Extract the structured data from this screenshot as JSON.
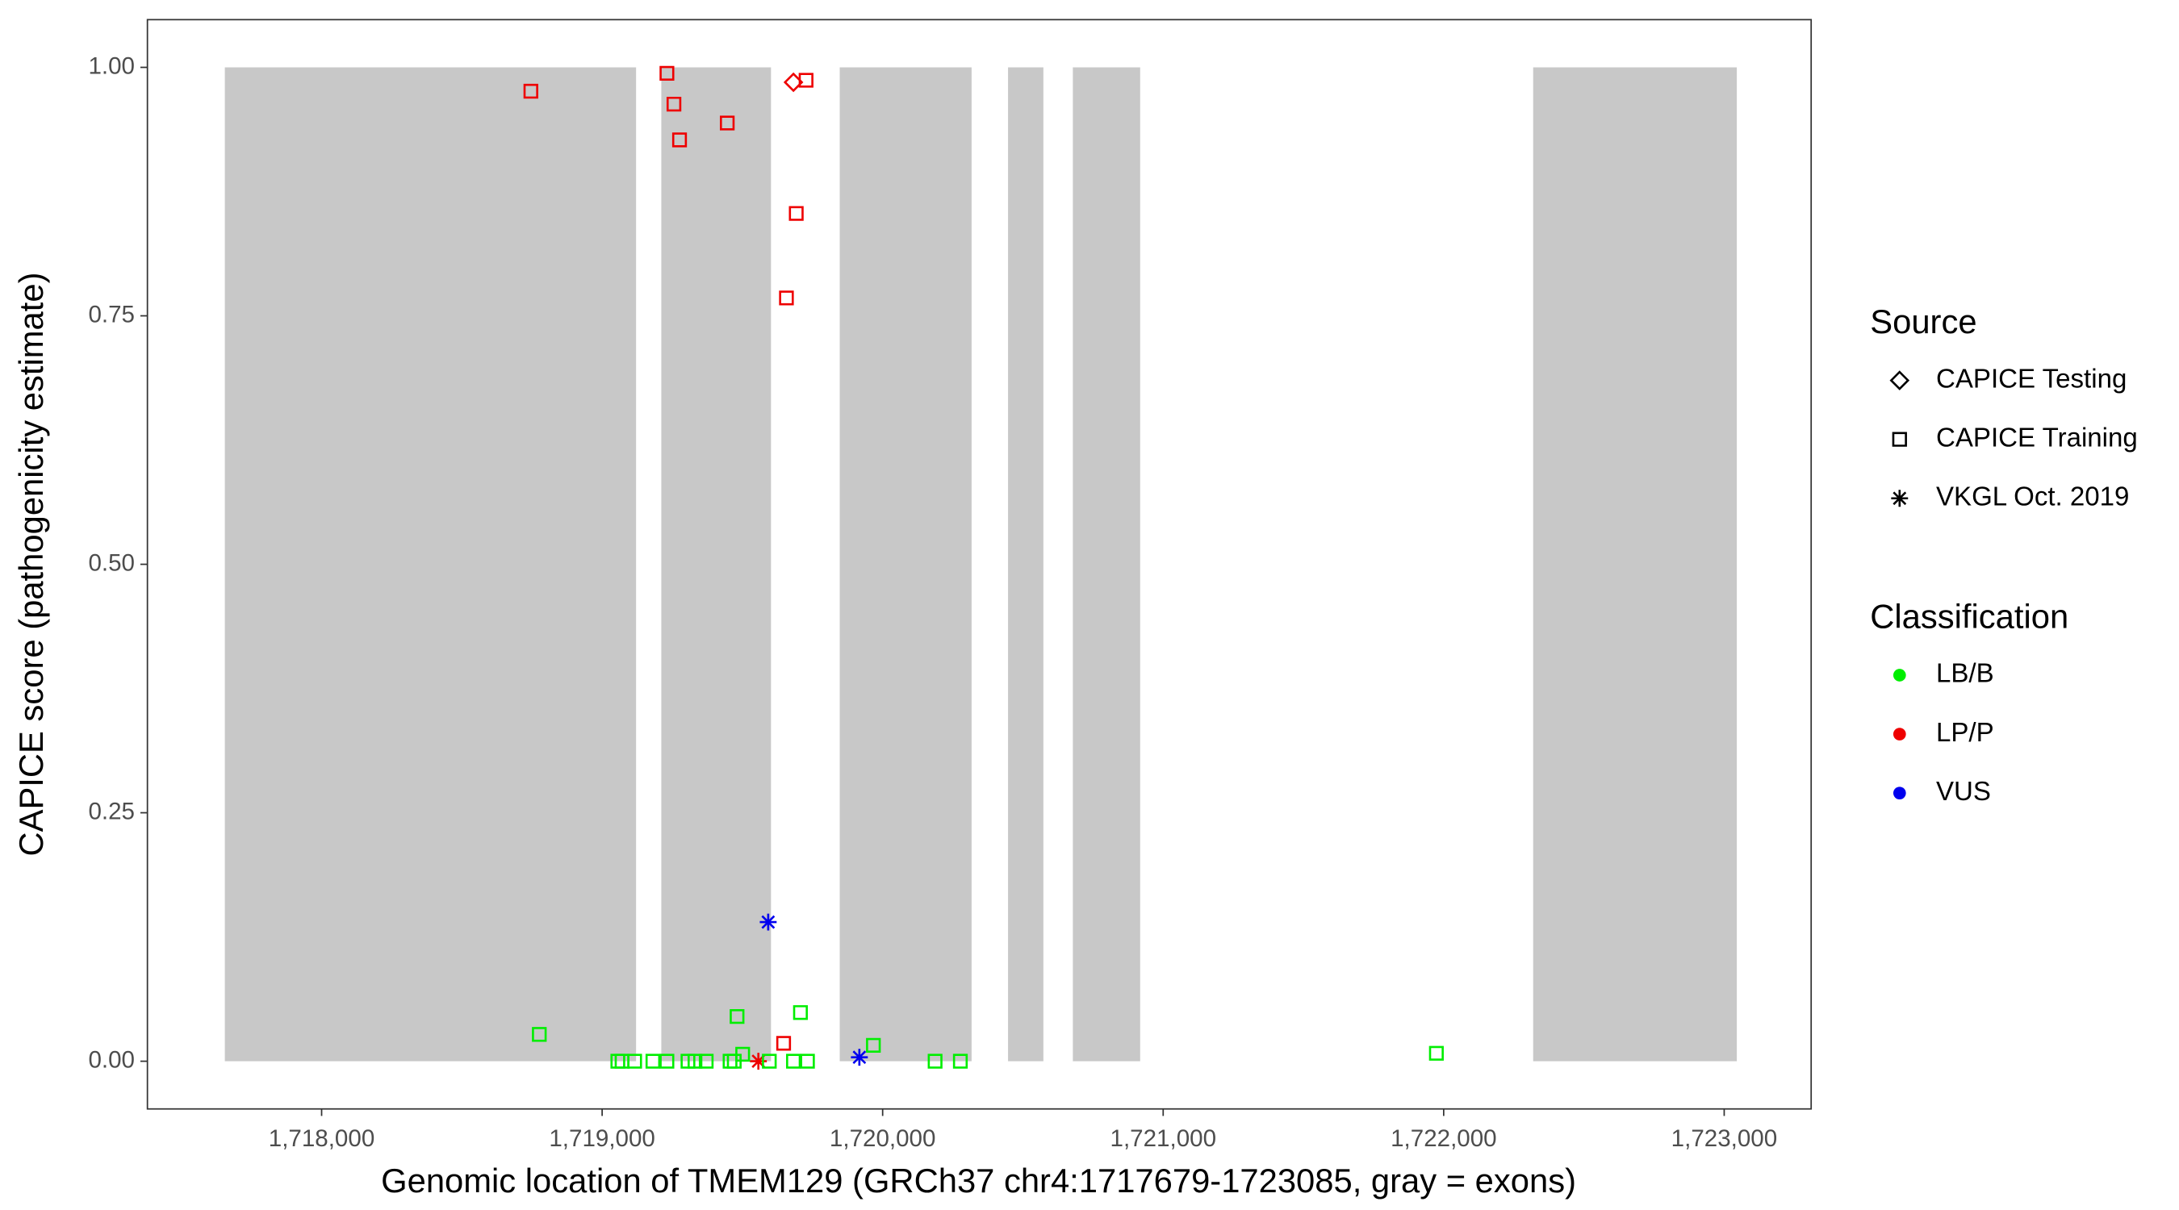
{
  "chart_data": {
    "type": "scatter",
    "xlabel": "Genomic location of TMEM129 (GRCh37 chr4:1717679-1723085, gray = exons)",
    "ylabel": "CAPICE score (pathogenicity estimate)",
    "xlim": [
      1717379,
      1723310
    ],
    "ylim": [
      -0.048,
      1.048
    ],
    "xticks": [
      {
        "value": 1718000,
        "label": "1,718,000"
      },
      {
        "value": 1719000,
        "label": "1,719,000"
      },
      {
        "value": 1720000,
        "label": "1,720,000"
      },
      {
        "value": 1721000,
        "label": "1,721,000"
      },
      {
        "value": 1722000,
        "label": "1,722,000"
      },
      {
        "value": 1723000,
        "label": "1,723,000"
      }
    ],
    "yticks": [
      {
        "value": 0,
        "label": "0.00"
      },
      {
        "value": 0.25,
        "label": "0.25"
      },
      {
        "value": 0.5,
        "label": "0.50"
      },
      {
        "value": 0.75,
        "label": "0.75"
      },
      {
        "value": 1,
        "label": "1.00"
      }
    ],
    "exon_color": "#c8c8c8",
    "exons": [
      [
        1717655,
        1719121
      ],
      [
        1719211,
        1719602
      ],
      [
        1719847,
        1720317
      ],
      [
        1720447,
        1720573
      ],
      [
        1720678,
        1720918
      ],
      [
        1722319,
        1723045
      ]
    ],
    "legends": [
      {
        "title": "Source",
        "entries": [
          {
            "label": "CAPICE Testing",
            "shape": "diamond"
          },
          {
            "label": "CAPICE Training",
            "shape": "square"
          },
          {
            "label": "VKGL Oct. 2019",
            "shape": "asterisk"
          }
        ]
      },
      {
        "title": "Classification",
        "entries": [
          {
            "label": "LB/B",
            "color": "#00ee00"
          },
          {
            "label": "LP/P",
            "color": "#ee0000"
          },
          {
            "label": "VUS",
            "color": "#0000ee"
          }
        ]
      }
    ],
    "series": [
      {
        "source": 1,
        "classification": 1,
        "x": [
          1718746,
          1719231,
          1719256,
          1719276,
          1719446,
          1719727,
          1719692,
          1719657,
          1719647
        ],
        "values": [
          0.976,
          0.994,
          0.963,
          0.927,
          0.944,
          0.987,
          0.853,
          0.768,
          0.018
        ]
      },
      {
        "source": 0,
        "classification": 1,
        "x": [
          1719682
        ],
        "values": [
          0.985
        ]
      },
      {
        "source": 2,
        "classification": 1,
        "x": [
          1719557
        ],
        "values": [
          0
        ]
      },
      {
        "source": 2,
        "classification": 2,
        "x": [
          1719592,
          1719917
        ],
        "values": [
          0.14,
          0.004
        ]
      },
      {
        "source": 1,
        "classification": 0,
        "x": [
          1718776,
          1719481,
          1719707,
          1719967,
          1721974,
          1719501,
          1719056,
          1719071,
          1719116,
          1719181,
          1719231,
          1719306,
          1719331,
          1719371,
          1719456,
          1719471,
          1719596,
          1719682,
          1719732,
          1720187,
          1720277
        ],
        "values": [
          0.027,
          0.045,
          0.049,
          0.016,
          0.008,
          0.007,
          0,
          0,
          0,
          0,
          0,
          0,
          0,
          0,
          0,
          0,
          0,
          0,
          0,
          0,
          0
        ]
      }
    ]
  }
}
